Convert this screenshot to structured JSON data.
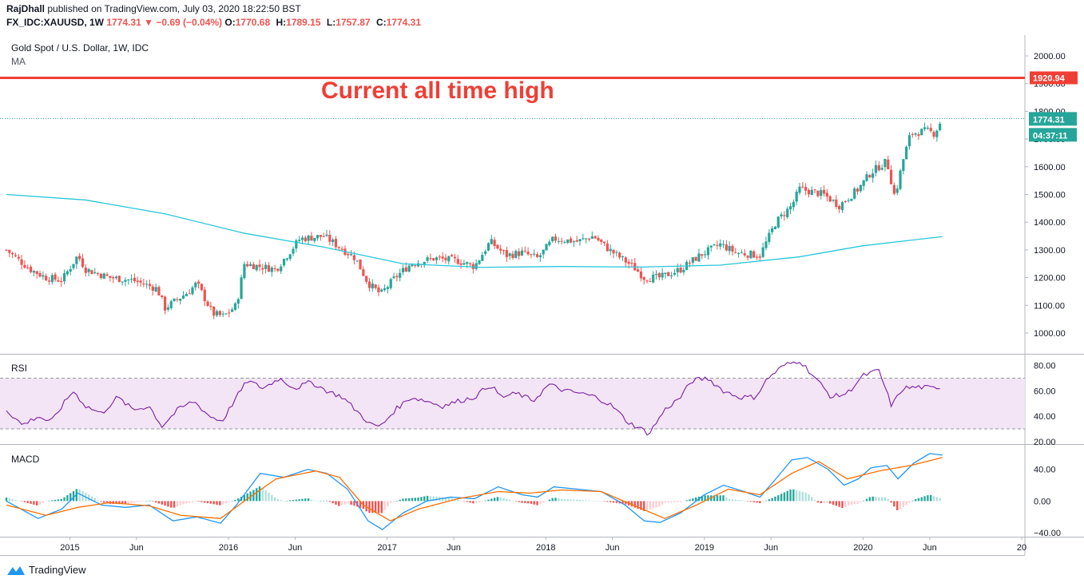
{
  "header": {
    "author": "RajDhall",
    "published_text": "published on TradingView.com, July 03, 2020 18:22:50 BST",
    "symbol_line": "FX_IDC:XAUUSD, 1W",
    "last_price": "1774.31",
    "change_arrow": "▼",
    "change": "−0.69 (−0.04%)",
    "open_label": "O:",
    "open": "1770.68",
    "high_label": "H:",
    "high": "1789.15",
    "low_label": "L:",
    "low": "1757.87",
    "close_label": "C:",
    "close": "1774.31"
  },
  "price_pane": {
    "title": "Gold Spot / U.S. Dollar, 1W, IDC",
    "indicator": "MA"
  },
  "rsi_pane": {
    "title": "RSI"
  },
  "macd_pane": {
    "title": "MACD"
  },
  "footer": {
    "brand": "TradingView"
  },
  "colors": {
    "up": "#26a69a",
    "down": "#ef5350",
    "ma": "#26c6da",
    "rsi": "#7b1fa2",
    "rsi_band": "#f3e5f5",
    "macd": "#2196f3",
    "signal": "#ff6d00",
    "hist_up": "#26a69a",
    "hist_down": "#ef5350",
    "hline": "#ef3f35"
  },
  "chart_data": [
    {
      "type": "candlestick",
      "annotation": "Current all time high",
      "hline_value": 1920.94,
      "hline_label": "1920.94",
      "last_price_label": "1774.31",
      "countdown_label": "04:37:11",
      "y_ticks": [
        1000,
        1100,
        1200,
        1300,
        1400,
        1500,
        1600,
        1700,
        1800,
        1900,
        2000
      ],
      "y_tick_labels": [
        "1000.00",
        "1100.00",
        "1200.00",
        "1300.00",
        "1400.00",
        "1500.00",
        "1600.00",
        "1700.00",
        "1800.00",
        "1900.00",
        "2000.00"
      ],
      "ylim": [
        925,
        2075
      ],
      "x_ticks": [
        {
          "label": "2015",
          "t": 2015.0
        },
        {
          "label": "Jun",
          "t": 2015.42
        },
        {
          "label": "2016",
          "t": 2016.0
        },
        {
          "label": "Jun",
          "t": 2016.42
        },
        {
          "label": "2017",
          "t": 2017.0
        },
        {
          "label": "Jun",
          "t": 2017.42
        },
        {
          "label": "2018",
          "t": 2018.0
        },
        {
          "label": "Jun",
          "t": 2018.42
        },
        {
          "label": "2019",
          "t": 2019.0
        },
        {
          "label": "Jun",
          "t": 2019.42
        },
        {
          "label": "2020",
          "t": 2020.0
        },
        {
          "label": "Jun",
          "t": 2020.42
        },
        {
          "label": "20",
          "t": 2021.0
        }
      ],
      "xlim": [
        2014.6,
        2021.02
      ],
      "close_path": [
        [
          2014.6,
          1300
        ],
        [
          2014.75,
          1230
        ],
        [
          2014.85,
          1200
        ],
        [
          2014.95,
          1190
        ],
        [
          2015.05,
          1280
        ],
        [
          2015.1,
          1230
        ],
        [
          2015.25,
          1200
        ],
        [
          2015.4,
          1190
        ],
        [
          2015.55,
          1160
        ],
        [
          2015.6,
          1090
        ],
        [
          2015.75,
          1150
        ],
        [
          2015.8,
          1180
        ],
        [
          2015.9,
          1070
        ],
        [
          2015.97,
          1060
        ],
        [
          2016.05,
          1100
        ],
        [
          2016.1,
          1250
        ],
        [
          2016.2,
          1240
        ],
        [
          2016.3,
          1230
        ],
        [
          2016.45,
          1340
        ],
        [
          2016.6,
          1350
        ],
        [
          2016.7,
          1310
        ],
        [
          2016.8,
          1270
        ],
        [
          2016.88,
          1180
        ],
        [
          2016.96,
          1140
        ],
        [
          2017.05,
          1200
        ],
        [
          2017.15,
          1250
        ],
        [
          2017.3,
          1270
        ],
        [
          2017.45,
          1260
        ],
        [
          2017.55,
          1240
        ],
        [
          2017.65,
          1330
        ],
        [
          2017.75,
          1280
        ],
        [
          2017.85,
          1290
        ],
        [
          2017.95,
          1270
        ],
        [
          2018.05,
          1340
        ],
        [
          2018.2,
          1330
        ],
        [
          2018.3,
          1350
        ],
        [
          2018.4,
          1300
        ],
        [
          2018.55,
          1240
        ],
        [
          2018.62,
          1200
        ],
        [
          2018.72,
          1200
        ],
        [
          2018.85,
          1230
        ],
        [
          2018.97,
          1280
        ],
        [
          2019.1,
          1320
        ],
        [
          2019.2,
          1290
        ],
        [
          2019.35,
          1280
        ],
        [
          2019.45,
          1400
        ],
        [
          2019.55,
          1460
        ],
        [
          2019.6,
          1520
        ],
        [
          2019.75,
          1500
        ],
        [
          2019.85,
          1460
        ],
        [
          2019.97,
          1520
        ],
        [
          2020.05,
          1580
        ],
        [
          2020.15,
          1620
        ],
        [
          2020.2,
          1490
        ],
        [
          2020.25,
          1620
        ],
        [
          2020.3,
          1720
        ],
        [
          2020.4,
          1730
        ],
        [
          2020.45,
          1720
        ],
        [
          2020.5,
          1774.31
        ]
      ],
      "ma_path": [
        [
          2014.6,
          1500
        ],
        [
          2015.1,
          1480
        ],
        [
          2015.6,
          1430
        ],
        [
          2016.1,
          1360
        ],
        [
          2016.6,
          1310
        ],
        [
          2017.1,
          1250
        ],
        [
          2017.6,
          1237
        ],
        [
          2018.1,
          1240
        ],
        [
          2018.6,
          1238
        ],
        [
          2019.1,
          1245
        ],
        [
          2019.6,
          1275
        ],
        [
          2020.0,
          1315
        ],
        [
          2020.5,
          1348
        ]
      ]
    },
    {
      "type": "line",
      "name": "RSI",
      "ylim": [
        18,
        88
      ],
      "y_ticks": [
        20,
        40,
        60,
        80
      ],
      "y_tick_labels": [
        "20.00",
        "40.00",
        "60.00",
        "80.00"
      ],
      "band": [
        30,
        70
      ],
      "points": [
        [
          2014.6,
          45
        ],
        [
          2014.7,
          33
        ],
        [
          2014.8,
          40
        ],
        [
          2014.88,
          35
        ],
        [
          2014.95,
          48
        ],
        [
          2015.02,
          60
        ],
        [
          2015.1,
          48
        ],
        [
          2015.2,
          42
        ],
        [
          2015.3,
          55
        ],
        [
          2015.4,
          45
        ],
        [
          2015.5,
          48
        ],
        [
          2015.58,
          32
        ],
        [
          2015.68,
          45
        ],
        [
          2015.78,
          52
        ],
        [
          2015.88,
          40
        ],
        [
          2015.96,
          36
        ],
        [
          2016.05,
          55
        ],
        [
          2016.12,
          68
        ],
        [
          2016.22,
          62
        ],
        [
          2016.32,
          70
        ],
        [
          2016.42,
          62
        ],
        [
          2016.52,
          67
        ],
        [
          2016.62,
          60
        ],
        [
          2016.72,
          55
        ],
        [
          2016.8,
          45
        ],
        [
          2016.9,
          33
        ],
        [
          2016.96,
          32
        ],
        [
          2017.05,
          45
        ],
        [
          2017.15,
          55
        ],
        [
          2017.25,
          52
        ],
        [
          2017.35,
          48
        ],
        [
          2017.45,
          52
        ],
        [
          2017.55,
          55
        ],
        [
          2017.65,
          65
        ],
        [
          2017.72,
          55
        ],
        [
          2017.82,
          58
        ],
        [
          2017.92,
          52
        ],
        [
          2018.02,
          65
        ],
        [
          2018.12,
          60
        ],
        [
          2018.22,
          58
        ],
        [
          2018.32,
          55
        ],
        [
          2018.42,
          48
        ],
        [
          2018.52,
          35
        ],
        [
          2018.6,
          30
        ],
        [
          2018.65,
          26
        ],
        [
          2018.75,
          45
        ],
        [
          2018.85,
          55
        ],
        [
          2018.92,
          68
        ],
        [
          2019.02,
          70
        ],
        [
          2019.12,
          60
        ],
        [
          2019.22,
          55
        ],
        [
          2019.32,
          55
        ],
        [
          2019.4,
          70
        ],
        [
          2019.5,
          80
        ],
        [
          2019.6,
          84
        ],
        [
          2019.7,
          70
        ],
        [
          2019.8,
          55
        ],
        [
          2019.9,
          58
        ],
        [
          2020.0,
          72
        ],
        [
          2020.1,
          76
        ],
        [
          2020.18,
          48
        ],
        [
          2020.25,
          62
        ],
        [
          2020.35,
          63
        ],
        [
          2020.45,
          62
        ],
        [
          2020.5,
          64
        ]
      ]
    },
    {
      "type": "line",
      "name": "MACD",
      "ylim": [
        -45,
        70
      ],
      "y_ticks": [
        -40,
        0,
        40
      ],
      "y_tick_labels": [
        "−40.00",
        "0.00",
        "40.00"
      ],
      "macd": [
        [
          2014.6,
          0
        ],
        [
          2014.8,
          -22
        ],
        [
          2014.95,
          -10
        ],
        [
          2015.05,
          10
        ],
        [
          2015.2,
          -5
        ],
        [
          2015.35,
          -8
        ],
        [
          2015.5,
          -5
        ],
        [
          2015.65,
          -25
        ],
        [
          2015.8,
          -20
        ],
        [
          2015.95,
          -28
        ],
        [
          2016.05,
          -5
        ],
        [
          2016.2,
          35
        ],
        [
          2016.35,
          30
        ],
        [
          2016.5,
          40
        ],
        [
          2016.62,
          35
        ],
        [
          2016.75,
          15
        ],
        [
          2016.88,
          -25
        ],
        [
          2016.97,
          -36
        ],
        [
          2017.1,
          -15
        ],
        [
          2017.25,
          0
        ],
        [
          2017.4,
          5
        ],
        [
          2017.55,
          3
        ],
        [
          2017.7,
          18
        ],
        [
          2017.85,
          8
        ],
        [
          2017.95,
          5
        ],
        [
          2018.05,
          18
        ],
        [
          2018.2,
          15
        ],
        [
          2018.35,
          12
        ],
        [
          2018.5,
          -5
        ],
        [
          2018.62,
          -25
        ],
        [
          2018.72,
          -27
        ],
        [
          2018.85,
          -15
        ],
        [
          2019.0,
          8
        ],
        [
          2019.12,
          20
        ],
        [
          2019.25,
          12
        ],
        [
          2019.35,
          5
        ],
        [
          2019.45,
          28
        ],
        [
          2019.55,
          52
        ],
        [
          2019.65,
          55
        ],
        [
          2019.78,
          40
        ],
        [
          2019.88,
          20
        ],
        [
          2019.97,
          28
        ],
        [
          2020.05,
          42
        ],
        [
          2020.15,
          45
        ],
        [
          2020.22,
          28
        ],
        [
          2020.32,
          48
        ],
        [
          2020.42,
          60
        ],
        [
          2020.5,
          58
        ]
      ],
      "signal": [
        [
          2014.6,
          -5
        ],
        [
          2014.85,
          -18
        ],
        [
          2015.05,
          -8
        ],
        [
          2015.25,
          -2
        ],
        [
          2015.5,
          -6
        ],
        [
          2015.7,
          -18
        ],
        [
          2015.95,
          -22
        ],
        [
          2016.1,
          0
        ],
        [
          2016.3,
          28
        ],
        [
          2016.55,
          38
        ],
        [
          2016.7,
          30
        ],
        [
          2016.85,
          -5
        ],
        [
          2017.02,
          -25
        ],
        [
          2017.2,
          -10
        ],
        [
          2017.45,
          3
        ],
        [
          2017.7,
          12
        ],
        [
          2017.9,
          10
        ],
        [
          2018.1,
          14
        ],
        [
          2018.35,
          12
        ],
        [
          2018.55,
          -5
        ],
        [
          2018.75,
          -22
        ],
        [
          2018.95,
          -5
        ],
        [
          2019.15,
          15
        ],
        [
          2019.35,
          8
        ],
        [
          2019.55,
          35
        ],
        [
          2019.72,
          50
        ],
        [
          2019.9,
          28
        ],
        [
          2020.1,
          38
        ],
        [
          2020.3,
          45
        ],
        [
          2020.5,
          55
        ]
      ]
    }
  ]
}
